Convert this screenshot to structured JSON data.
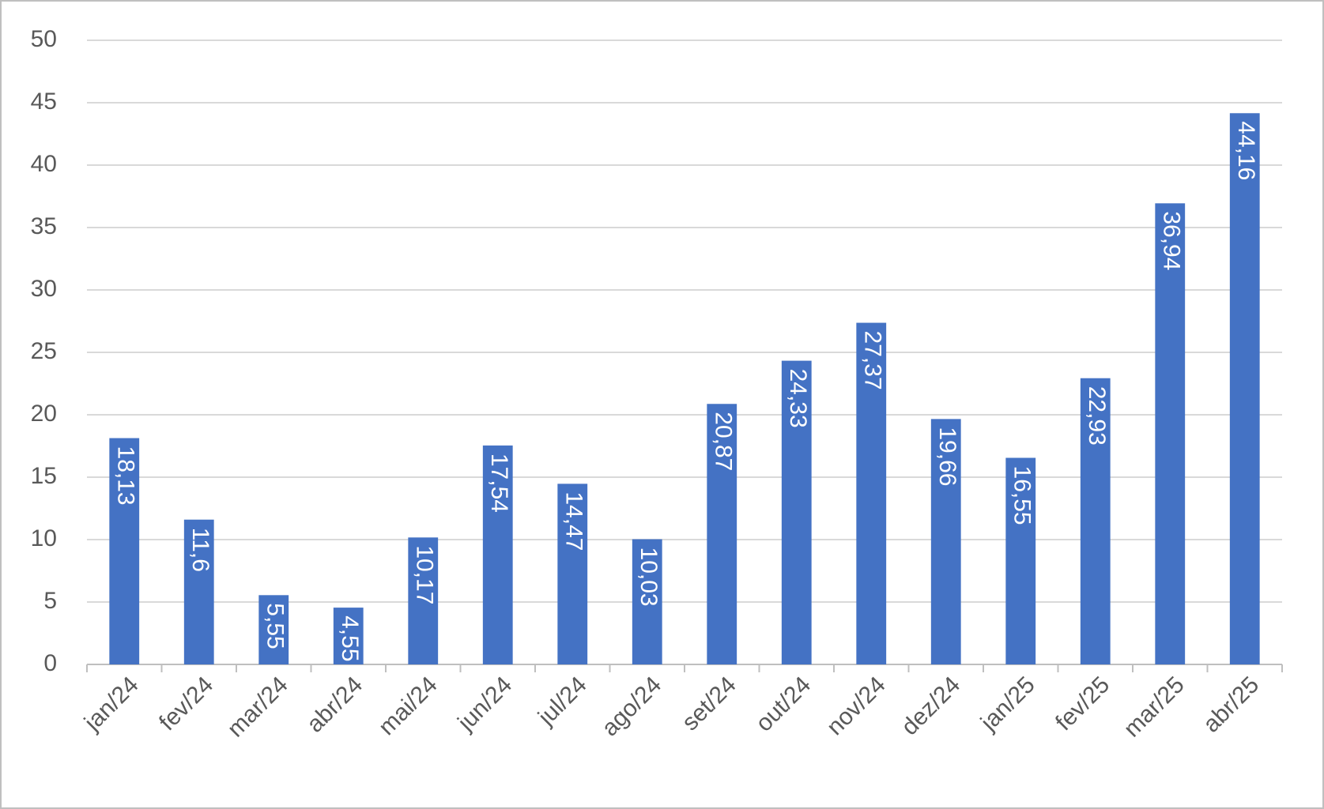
{
  "chart_data": {
    "type": "bar",
    "categories": [
      "jan/24",
      "fev/24",
      "mar/24",
      "abr/24",
      "mai/24",
      "jun/24",
      "jul/24",
      "ago/24",
      "set/24",
      "out/24",
      "nov/24",
      "dez/24",
      "jan/25",
      "fev/25",
      "mar/25",
      "abr/25"
    ],
    "values": [
      18.13,
      11.6,
      5.55,
      4.55,
      10.17,
      17.54,
      14.47,
      10.03,
      20.87,
      24.33,
      27.37,
      19.66,
      16.55,
      22.93,
      36.94,
      44.16
    ],
    "value_labels": [
      "18,13",
      "11,6",
      "5,55",
      "4,55",
      "10,17",
      "17,54",
      "14,47",
      "10,03",
      "20,87",
      "24,33",
      "27,37",
      "19,66",
      "16,55",
      "22,93",
      "36,94",
      "44,16"
    ],
    "color": "#4472c4",
    "ylim": [
      0,
      50
    ],
    "yticks": [
      0,
      5,
      10,
      15,
      20,
      25,
      30,
      35,
      40,
      45,
      50
    ],
    "grid": true
  }
}
